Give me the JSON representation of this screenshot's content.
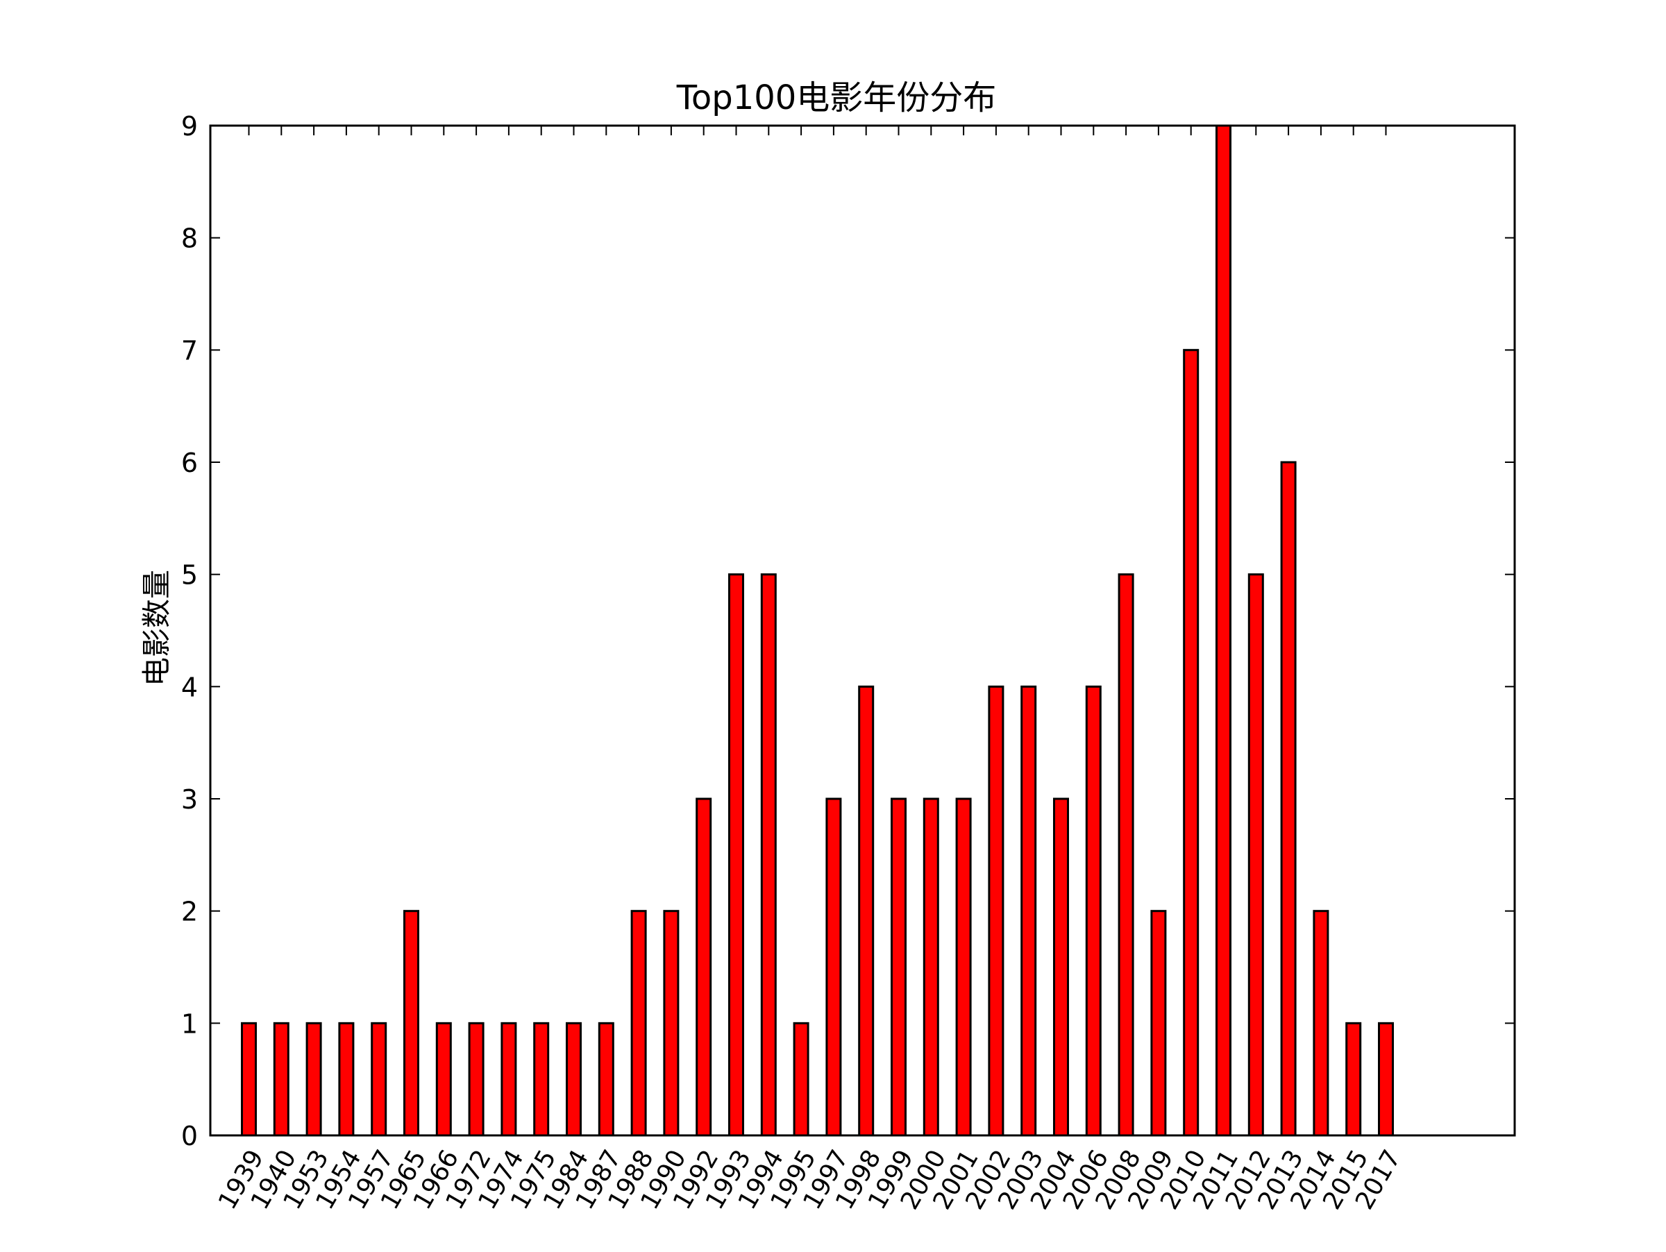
{
  "chart_data": {
    "type": "bar",
    "title": "Top100电影年份分布",
    "xlabel": "",
    "ylabel": "电影数量",
    "categories": [
      "1939",
      "1940",
      "1953",
      "1954",
      "1957",
      "1965",
      "1966",
      "1972",
      "1974",
      "1975",
      "1984",
      "1987",
      "1988",
      "1990",
      "1992",
      "1993",
      "1994",
      "1995",
      "1997",
      "1998",
      "1999",
      "2000",
      "2001",
      "2002",
      "2003",
      "2004",
      "2006",
      "2008",
      "2009",
      "2010",
      "2011",
      "2012",
      "2013",
      "2014",
      "2015",
      "2017"
    ],
    "values": [
      1,
      1,
      1,
      1,
      1,
      2,
      1,
      1,
      1,
      1,
      1,
      1,
      2,
      2,
      3,
      5,
      5,
      1,
      3,
      4,
      3,
      3,
      3,
      4,
      4,
      3,
      4,
      5,
      2,
      7,
      9,
      5,
      6,
      2,
      1,
      1
    ],
    "ylim": [
      0,
      9
    ],
    "yticks": [
      "0",
      "1",
      "2",
      "3",
      "4",
      "5",
      "6",
      "7",
      "8",
      "9"
    ],
    "grid": false,
    "legend": "none",
    "colors": {
      "bar_fill": "#ff0000",
      "bar_edge": "#000000",
      "axis": "#000000"
    }
  }
}
